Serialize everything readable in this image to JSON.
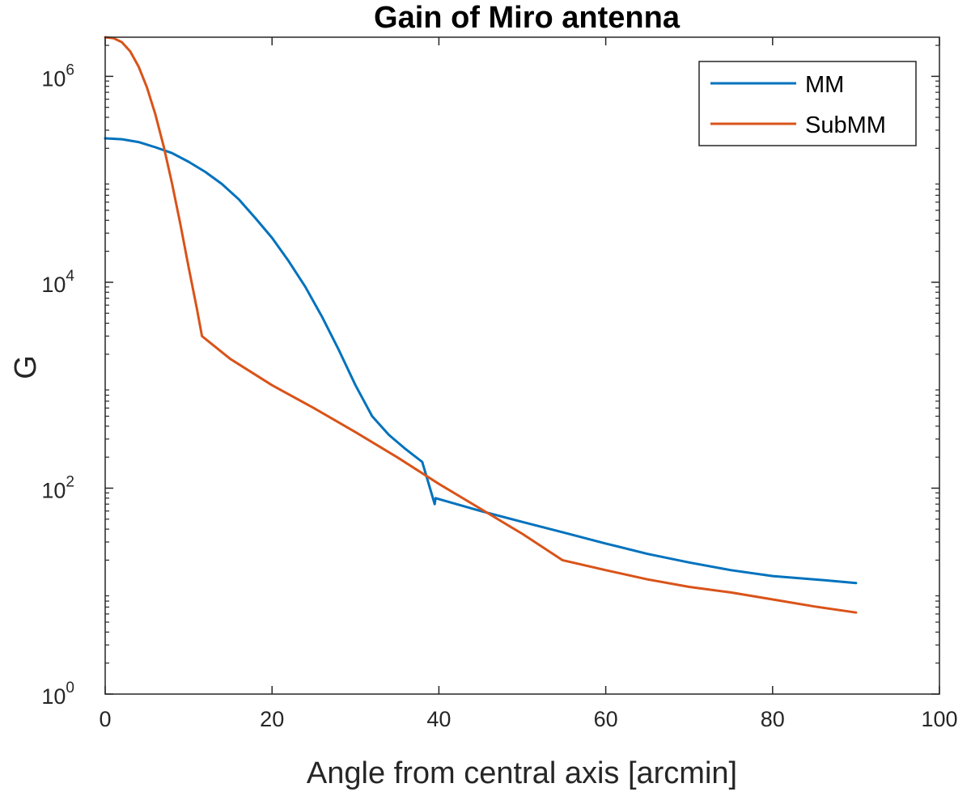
{
  "chart_data": {
    "type": "line",
    "title": "Gain of Miro antenna",
    "xlabel": "Angle from central axis [arcmin]",
    "ylabel": "G",
    "xlim": [
      0,
      100
    ],
    "ylim": [
      1,
      2400000
    ],
    "yscale": "log",
    "grid": false,
    "legend_position": "top-right",
    "x_ticks": [
      0,
      20,
      40,
      60,
      80,
      100
    ],
    "x_tick_labels": [
      "0",
      "20",
      "40",
      "60",
      "80",
      "100"
    ],
    "y_ticks": [
      1,
      100,
      10000,
      1000000
    ],
    "y_tick_labels": [
      {
        "base": "10",
        "exp": "0"
      },
      {
        "base": "10",
        "exp": "2"
      },
      {
        "base": "10",
        "exp": "4"
      },
      {
        "base": "10",
        "exp": "6"
      }
    ],
    "series": [
      {
        "name": "MM",
        "color": "#0072BD",
        "x": [
          0,
          2,
          4,
          6,
          8,
          10,
          12,
          14,
          16,
          18,
          20,
          22,
          24,
          26,
          28,
          30,
          32,
          34,
          36,
          38,
          39.5,
          39.6,
          45,
          50,
          55,
          60,
          65,
          70,
          75,
          80,
          85,
          90
        ],
        "y": [
          250000,
          245000,
          230000,
          205000,
          180000,
          148000,
          118000,
          90000,
          64000,
          42000,
          27000,
          16000,
          9000,
          4600,
          2200,
          1000,
          500,
          330,
          240,
          180,
          70,
          80,
          60,
          47,
          37,
          29,
          23,
          19,
          16,
          14,
          13,
          12
        ]
      },
      {
        "name": "SubMM",
        "color": "#D95319",
        "x": [
          0,
          1,
          2,
          3,
          4,
          5,
          6,
          7,
          8,
          9,
          10,
          11,
          11.6,
          15,
          20,
          25,
          30,
          35,
          40,
          45,
          50,
          54.8,
          60,
          65,
          70,
          75,
          80,
          85,
          90
        ],
        "y": [
          2400000,
          2350000,
          2150000,
          1750000,
          1250000,
          780000,
          430000,
          210000,
          92000,
          37000,
          14000,
          5500,
          3000,
          1800,
          1000,
          600,
          350,
          200,
          110,
          63,
          36,
          20,
          16,
          13,
          11,
          9.7,
          8.3,
          7.1,
          6.2
        ]
      }
    ]
  }
}
